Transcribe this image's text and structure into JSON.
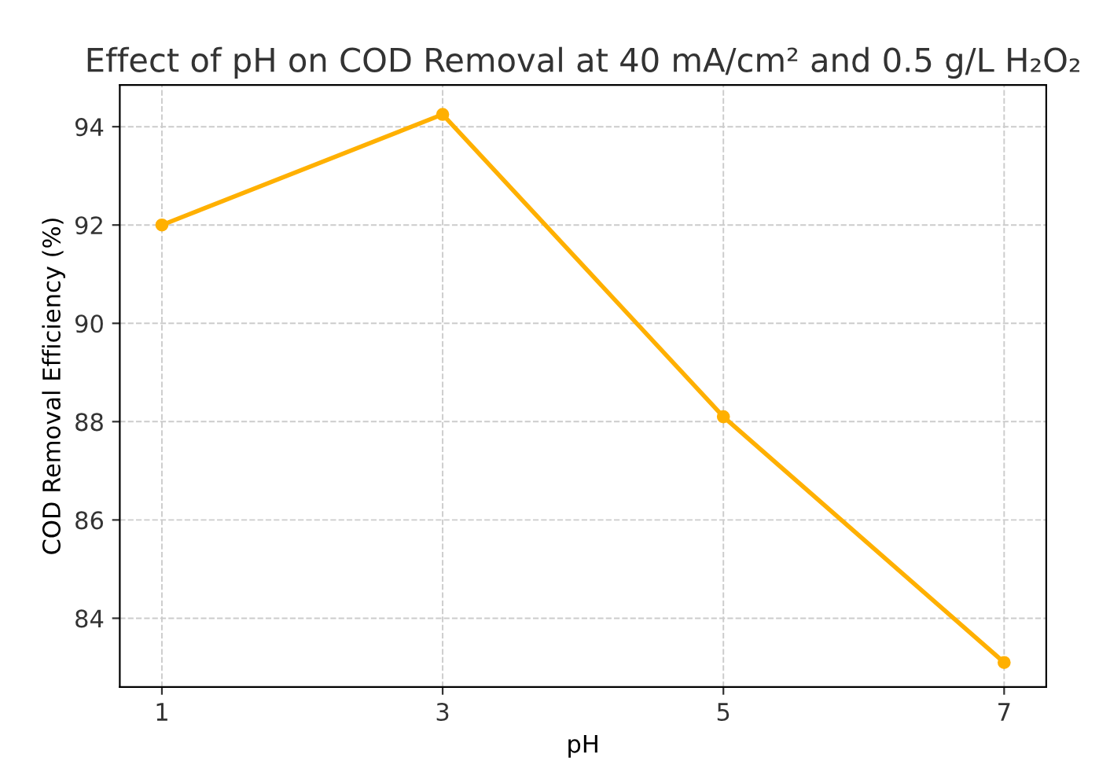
{
  "chart_data": {
    "type": "line",
    "title": "Effect of pH on COD Removal at 40 mA/cm² and 0.5 g/L H₂O₂",
    "xlabel": "pH",
    "ylabel": "COD Removal Efficiency (%)",
    "x": [
      1,
      3,
      5,
      7
    ],
    "series": [
      {
        "color": "#ffb000",
        "values": [
          92.0,
          94.25,
          88.1,
          83.1
        ]
      }
    ],
    "xlim": [
      0.7,
      7.3
    ],
    "ylim": [
      82.6,
      94.85
    ],
    "xticks": [
      1,
      3,
      5,
      7
    ],
    "yticks": [
      84,
      86,
      88,
      90,
      92,
      94
    ],
    "grid": true,
    "marker": "circle",
    "line_style": "solid"
  }
}
